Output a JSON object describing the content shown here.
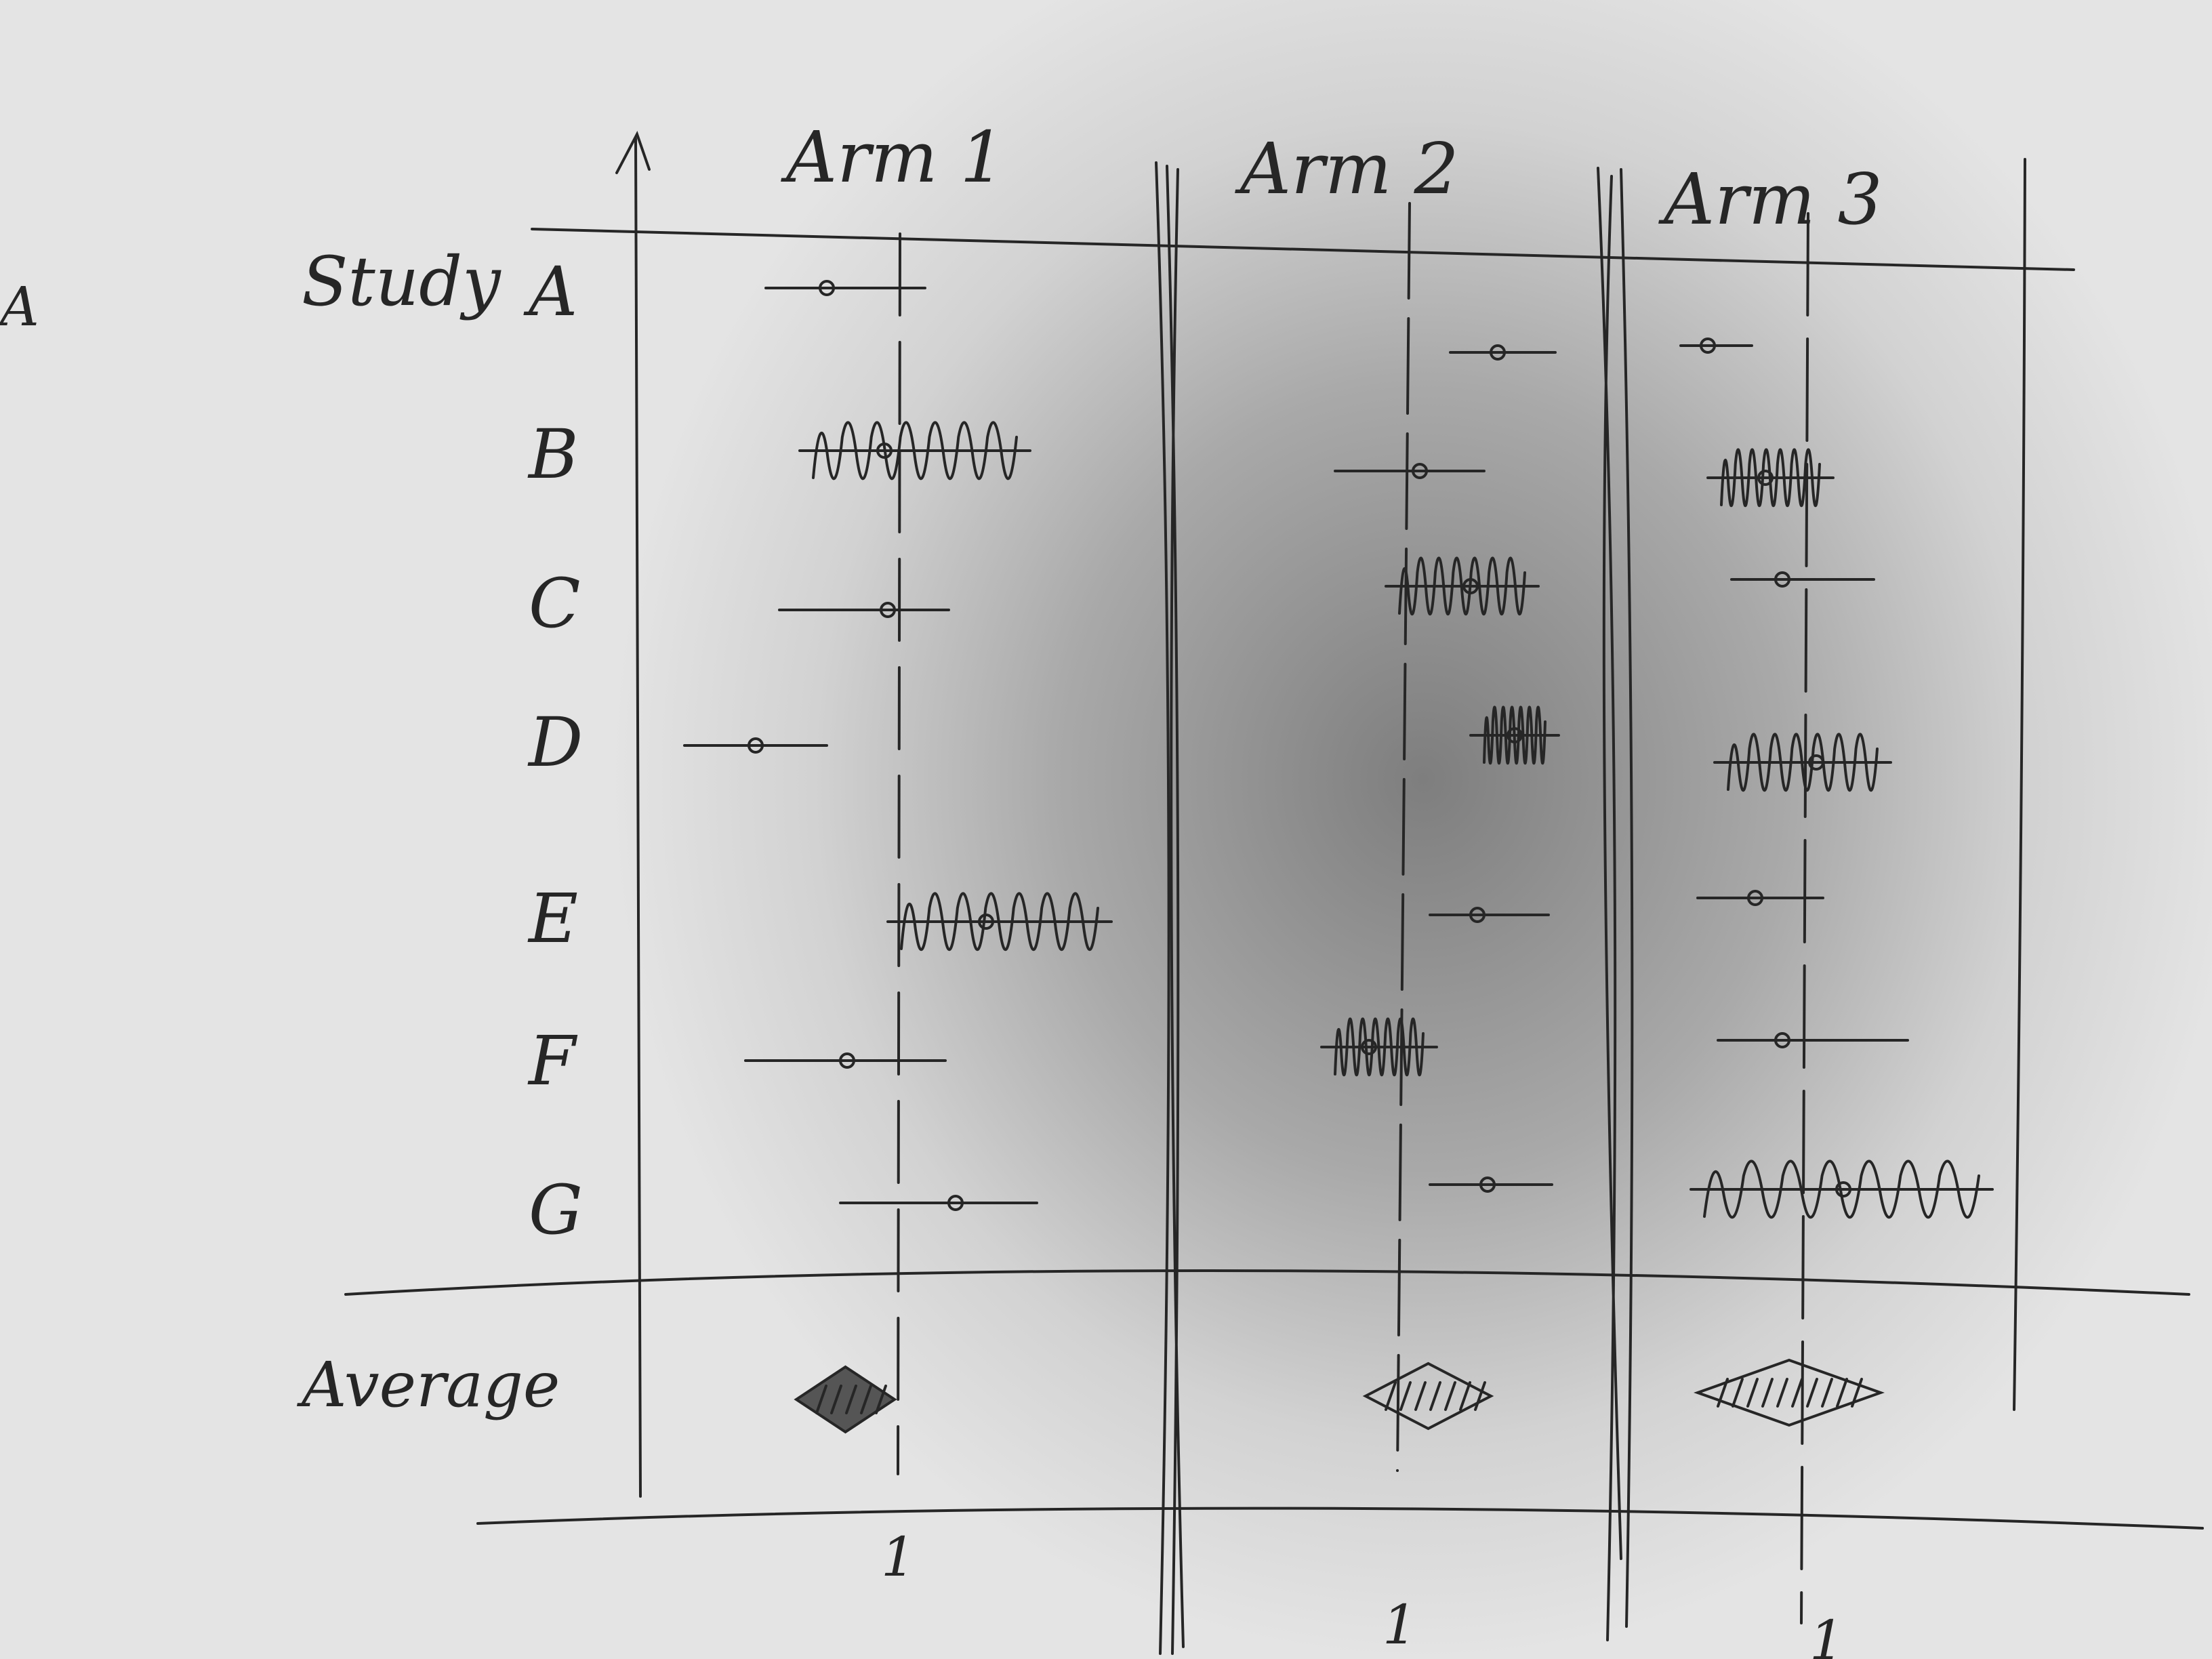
{
  "arms": [
    {
      "label": "Arm 1"
    },
    {
      "label": "Arm 2"
    },
    {
      "label": "Arm 3"
    }
  ],
  "row_header": "Study",
  "studies": [
    "A",
    "B",
    "C",
    "D",
    "E",
    "F",
    "G"
  ],
  "summary_label": "Average",
  "reference_labels": [
    "1",
    "1",
    "1"
  ],
  "margin_mark": "A",
  "colors": {
    "ink": "#262626",
    "paper": "#e4e4e4"
  }
}
